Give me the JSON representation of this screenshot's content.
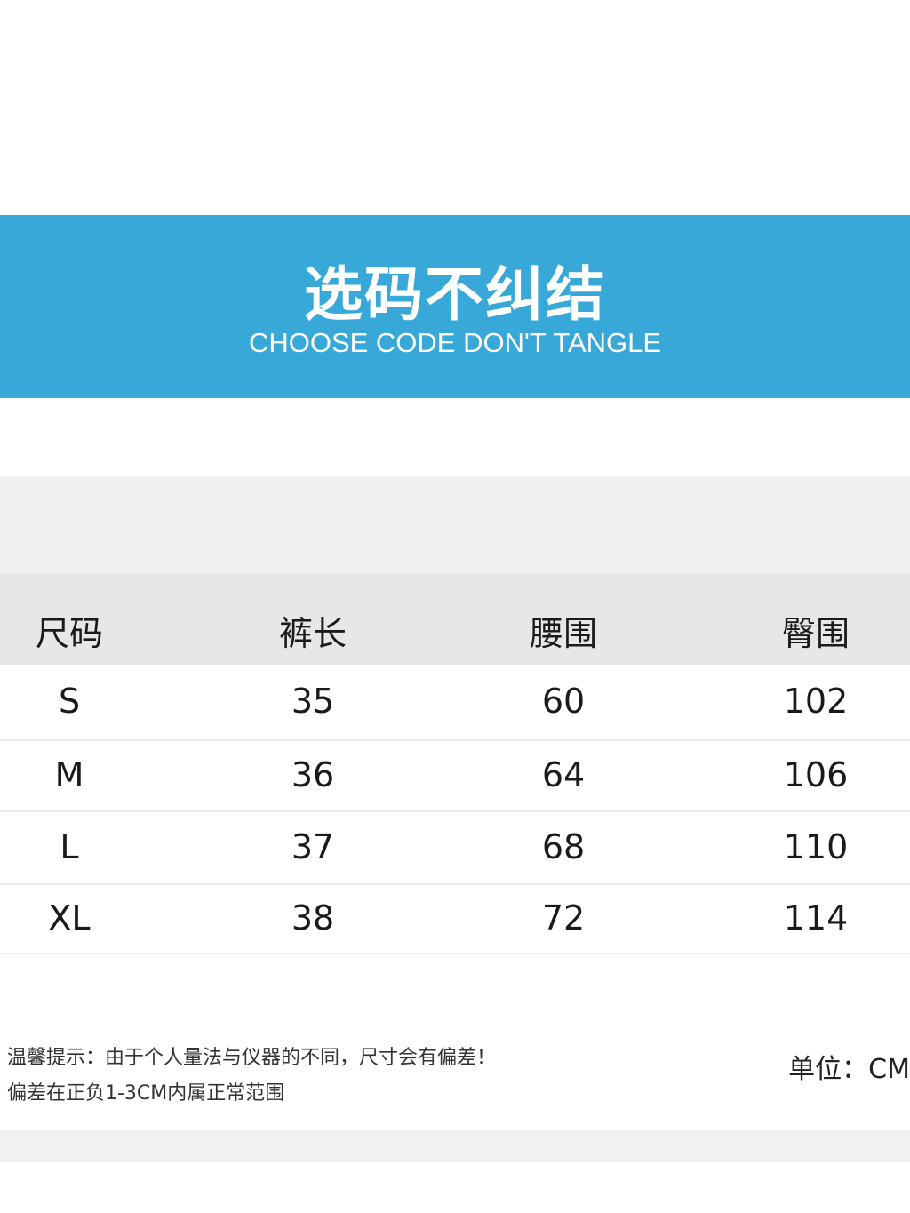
{
  "banner": {
    "title": "选码不纠结",
    "subtitle": "CHOOSE CODE DON'T TANGLE",
    "color": "#38a8d8"
  },
  "table": {
    "headers": [
      "尺码",
      "裤长",
      "腰围",
      "臀围"
    ],
    "rows": [
      [
        "S",
        "35",
        "60",
        "102"
      ],
      [
        "M",
        "36",
        "64",
        "106"
      ],
      [
        "L",
        "37",
        "68",
        "110"
      ],
      [
        "XL",
        "38",
        "72",
        "114"
      ]
    ]
  },
  "notes": {
    "line1": "温馨提示：由于个人量法与仪器的不同，尺寸会有偏差！",
    "line2": "偏差在正负1-3CM内属正常范围",
    "unit": "单位：CM"
  }
}
